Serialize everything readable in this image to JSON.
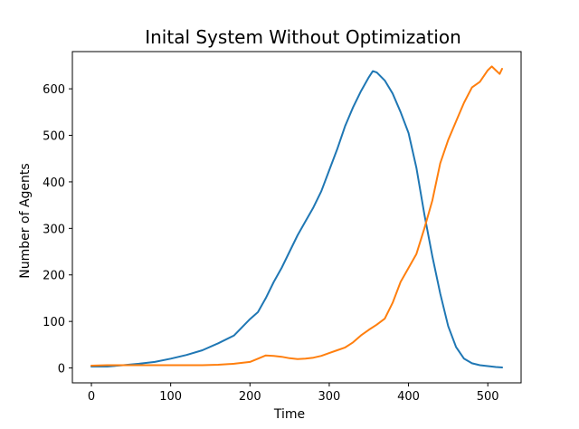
{
  "chart_data": {
    "type": "line",
    "title": "Inital System Without Optimization",
    "xlabel": "Time",
    "ylabel": "Number of Agents",
    "xlim": [
      -24,
      542
    ],
    "ylim": [
      -32,
      680
    ],
    "xticks": [
      0,
      100,
      200,
      300,
      400,
      500
    ],
    "yticks": [
      0,
      100,
      200,
      300,
      400,
      500,
      600
    ],
    "grid": false,
    "legend": "none",
    "series": [
      {
        "color": "#1f77b4",
        "points": [
          [
            0,
            3
          ],
          [
            20,
            3
          ],
          [
            40,
            6
          ],
          [
            60,
            9
          ],
          [
            80,
            13
          ],
          [
            100,
            20
          ],
          [
            120,
            28
          ],
          [
            140,
            38
          ],
          [
            160,
            53
          ],
          [
            180,
            70
          ],
          [
            200,
            105
          ],
          [
            210,
            120
          ],
          [
            220,
            150
          ],
          [
            230,
            185
          ],
          [
            240,
            215
          ],
          [
            250,
            250
          ],
          [
            260,
            285
          ],
          [
            270,
            315
          ],
          [
            280,
            345
          ],
          [
            290,
            380
          ],
          [
            300,
            425
          ],
          [
            310,
            470
          ],
          [
            320,
            520
          ],
          [
            330,
            560
          ],
          [
            340,
            595
          ],
          [
            350,
            625
          ],
          [
            355,
            638
          ],
          [
            360,
            635
          ],
          [
            370,
            618
          ],
          [
            380,
            590
          ],
          [
            390,
            550
          ],
          [
            400,
            505
          ],
          [
            410,
            430
          ],
          [
            420,
            330
          ],
          [
            430,
            240
          ],
          [
            440,
            160
          ],
          [
            450,
            90
          ],
          [
            460,
            45
          ],
          [
            470,
            20
          ],
          [
            480,
            10
          ],
          [
            490,
            6
          ],
          [
            500,
            4
          ],
          [
            510,
            2
          ],
          [
            518,
            1
          ]
        ]
      },
      {
        "color": "#ff7f0e",
        "points": [
          [
            0,
            5
          ],
          [
            20,
            6
          ],
          [
            40,
            6
          ],
          [
            60,
            6
          ],
          [
            80,
            6
          ],
          [
            100,
            6
          ],
          [
            120,
            6
          ],
          [
            140,
            6
          ],
          [
            160,
            7
          ],
          [
            180,
            9
          ],
          [
            200,
            13
          ],
          [
            210,
            20
          ],
          [
            220,
            27
          ],
          [
            230,
            26
          ],
          [
            240,
            24
          ],
          [
            250,
            21
          ],
          [
            260,
            19
          ],
          [
            270,
            20
          ],
          [
            280,
            22
          ],
          [
            290,
            26
          ],
          [
            300,
            32
          ],
          [
            310,
            38
          ],
          [
            320,
            44
          ],
          [
            330,
            55
          ],
          [
            340,
            70
          ],
          [
            350,
            82
          ],
          [
            360,
            93
          ],
          [
            370,
            106
          ],
          [
            380,
            140
          ],
          [
            390,
            185
          ],
          [
            400,
            215
          ],
          [
            410,
            245
          ],
          [
            420,
            300
          ],
          [
            430,
            360
          ],
          [
            440,
            440
          ],
          [
            450,
            490
          ],
          [
            460,
            530
          ],
          [
            470,
            570
          ],
          [
            480,
            603
          ],
          [
            490,
            615
          ],
          [
            500,
            640
          ],
          [
            505,
            648
          ],
          [
            510,
            640
          ],
          [
            515,
            632
          ],
          [
            518,
            643
          ]
        ]
      }
    ]
  }
}
